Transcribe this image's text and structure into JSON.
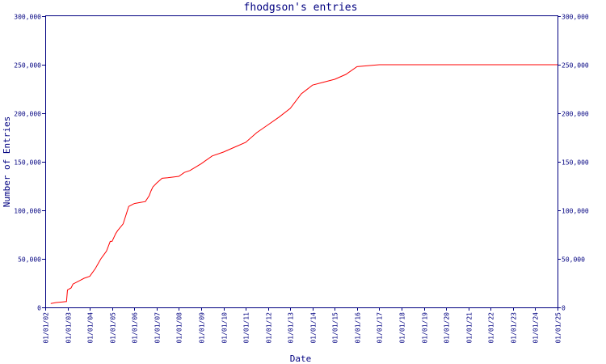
{
  "chart_data": {
    "type": "line",
    "title": "fhodgson's entries",
    "xlabel": "Date",
    "ylabel": "Number of Entries",
    "ylim": [
      0,
      300000
    ],
    "yticks": [
      0,
      50000,
      100000,
      150000,
      200000,
      250000,
      300000
    ],
    "ytick_labels": [
      "0",
      "50,000",
      "100,000",
      "150,000",
      "200,000",
      "250,000",
      "300,000"
    ],
    "xlim": [
      "2002-01-01",
      "2025-01-01"
    ],
    "xtick_labels": [
      "01/01/02",
      "01/01/03",
      "01/01/04",
      "01/01/05",
      "01/01/06",
      "01/01/07",
      "01/01/08",
      "01/01/09",
      "01/01/10",
      "01/01/11",
      "01/01/12",
      "01/01/13",
      "01/01/14",
      "01/01/15",
      "01/01/16",
      "01/01/17",
      "01/01/18",
      "01/01/19",
      "01/01/20",
      "01/01/21",
      "01/01/22",
      "01/01/23",
      "01/01/24",
      "01/01/25"
    ],
    "grid": false,
    "colors": {
      "axis": "#000080",
      "series": "#ff0000"
    },
    "series": [
      {
        "x": [
          "2002-04-01",
          "2002-07-01",
          "2002-10-01",
          "2002-12-15",
          "2003-01-01",
          "2003-03-01",
          "2003-04-01",
          "2003-06-01",
          "2003-08-01",
          "2003-10-01",
          "2004-01-01",
          "2004-04-01",
          "2004-07-01",
          "2004-10-01",
          "2004-12-01",
          "2005-01-01",
          "2005-03-01",
          "2005-04-01",
          "2005-07-01",
          "2005-10-01",
          "2005-12-01",
          "2006-01-01",
          "2006-04-01",
          "2006-07-01",
          "2006-09-01",
          "2006-10-01",
          "2006-11-01",
          "2007-01-01",
          "2007-04-01",
          "2007-07-01",
          "2008-01-01",
          "2008-04-01",
          "2008-07-01",
          "2009-01-01",
          "2009-07-01",
          "2010-01-01",
          "2010-07-01",
          "2011-01-01",
          "2011-07-01",
          "2012-01-01",
          "2012-07-01",
          "2013-01-01",
          "2013-07-01",
          "2014-01-01",
          "2014-07-01",
          "2015-01-01",
          "2015-07-01",
          "2016-01-01",
          "2017-01-01",
          "2020-01-01",
          "2025-01-01"
        ],
        "values": [
          4000,
          5000,
          5500,
          6000,
          18000,
          20000,
          24000,
          26000,
          28000,
          30000,
          32000,
          40000,
          50000,
          58000,
          68000,
          68000,
          76000,
          79000,
          86000,
          104000,
          106000,
          107000,
          108000,
          109000,
          115000,
          120000,
          124000,
          128000,
          133000,
          133500,
          135000,
          139000,
          141000,
          148000,
          156000,
          160000,
          165000,
          170000,
          180000,
          188000,
          196000,
          205000,
          220000,
          229000,
          232000,
          235000,
          240000,
          248000,
          250000,
          250000,
          250000
        ]
      }
    ]
  }
}
